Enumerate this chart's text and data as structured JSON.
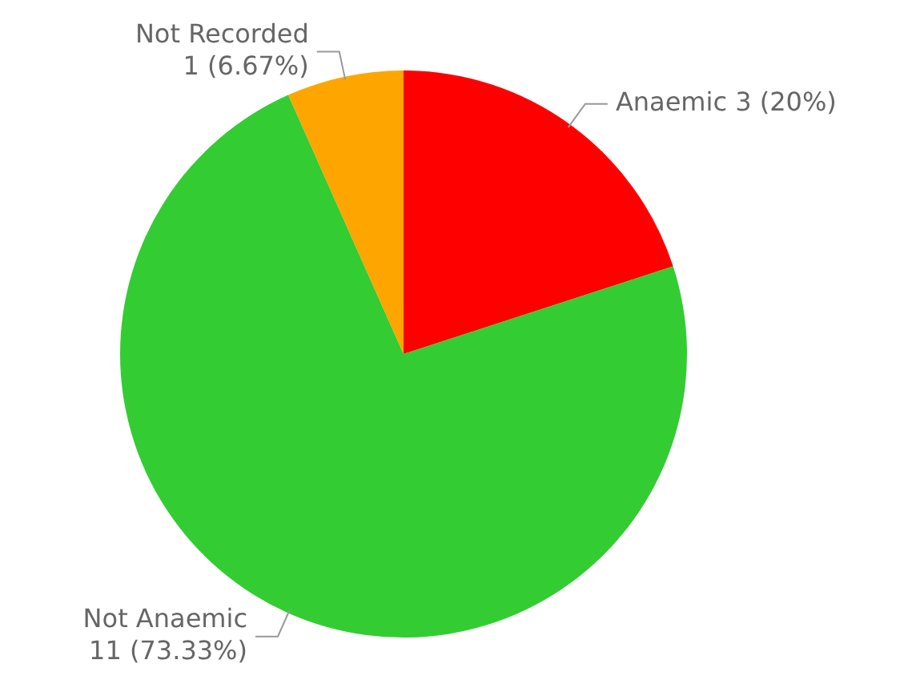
{
  "chart_data": {
    "type": "pie",
    "categories": [
      "Anaemic",
      "Not Anaemic",
      "Not Recorded"
    ],
    "values": [
      3,
      11,
      1
    ],
    "colors": [
      "#ff0000",
      "#33cc33",
      "#ffa500"
    ],
    "value_labels": [
      "3 (20%)",
      "11 (73.33%)",
      "1 (6.67%)"
    ],
    "legend": false
  }
}
